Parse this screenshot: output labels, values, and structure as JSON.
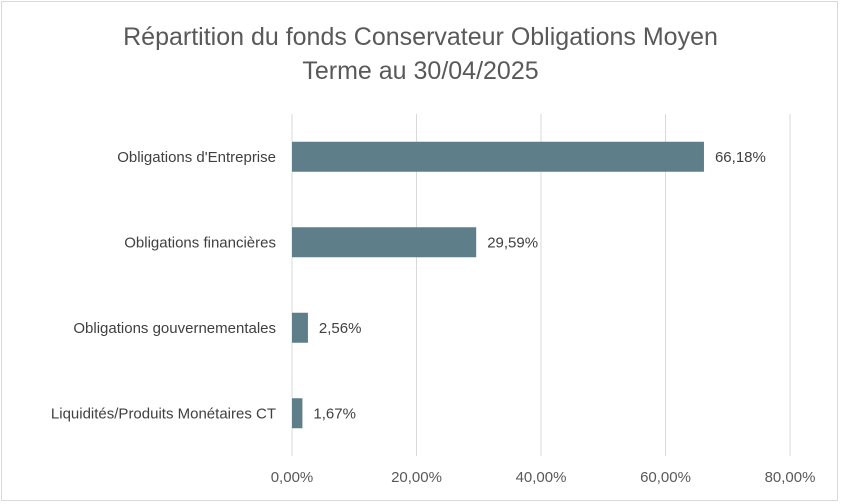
{
  "chart_data": {
    "type": "bar",
    "orientation": "horizontal",
    "title_line1": "Répartition du fonds Conservateur Obligations Moyen",
    "title_line2": "Terme au 30/04/2025",
    "categories": [
      "Obligations d'Entreprise",
      "Obligations financières",
      "Obligations gouvernementales",
      "Liquidités/Produits Monétaires CT"
    ],
    "values": [
      66.18,
      29.59,
      2.56,
      1.67
    ],
    "data_labels": [
      "66,18%",
      "29,59%",
      "2,56%",
      "1,67%"
    ],
    "xlim": [
      0,
      80
    ],
    "x_ticks": [
      0,
      20,
      40,
      60,
      80
    ],
    "x_tick_labels": [
      "0,00%",
      "20,00%",
      "40,00%",
      "60,00%",
      "80,00%"
    ],
    "grid": "vertical",
    "legend": "none",
    "bar_color": "#5e7e8a",
    "grid_color": "#d9d9d9"
  }
}
